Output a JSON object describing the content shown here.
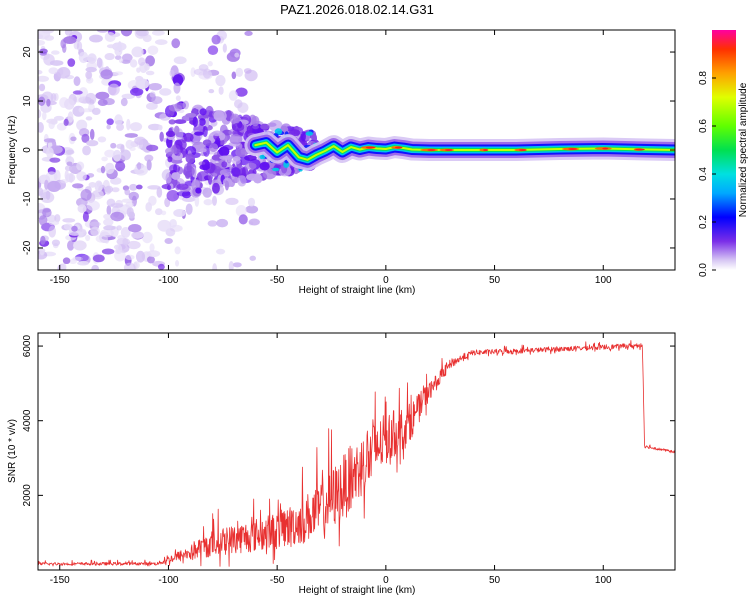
{
  "title": "PAZ1.2026.018.02.14.G31",
  "colors": {
    "line": "#e83030",
    "axis": "#000000",
    "background": "#ffffff"
  },
  "chart_data": [
    {
      "type": "heatmap",
      "title": "PAZ1.2026.018.02.14.G31",
      "xlabel": "Height of straight line (km)",
      "ylabel": "Frequency (Hz)",
      "xlim": [
        -160,
        133
      ],
      "ylim": [
        -24.5,
        24.5
      ],
      "xticks": [
        -150,
        -100,
        -50,
        0,
        50,
        100
      ],
      "xtick_labels": [
        "-150",
        "-100",
        "-50",
        "0",
        "50",
        "100"
      ],
      "yticks": [
        -20,
        -10,
        0,
        10,
        20
      ],
      "ytick_labels": [
        "-20",
        "-10",
        "0",
        "10",
        "20"
      ],
      "colorbar": {
        "label": "Normalized spectral amplitude",
        "range": [
          0,
          1
        ],
        "ticks": [
          0.0,
          0.2,
          0.4,
          0.6,
          0.8
        ],
        "tick_labels": [
          "0.0",
          "0.2",
          "0.4",
          "0.6",
          "0.8"
        ]
      },
      "ridge": [
        {
          "x": -60,
          "y": 1.0
        },
        {
          "x": -55,
          "y": 1.5
        },
        {
          "x": -50,
          "y": -0.5
        },
        {
          "x": -45,
          "y": 1.0
        },
        {
          "x": -40,
          "y": -1.5
        },
        {
          "x": -36,
          "y": -2.0
        },
        {
          "x": -32,
          "y": -1.0
        },
        {
          "x": -28,
          "y": -0.2
        },
        {
          "x": -24,
          "y": 0.8
        },
        {
          "x": -20,
          "y": -0.4
        },
        {
          "x": -16,
          "y": 0.6
        },
        {
          "x": -12,
          "y": 0.1
        },
        {
          "x": -8,
          "y": 0.5
        },
        {
          "x": -4,
          "y": 0.3
        },
        {
          "x": 0,
          "y": 0.2
        },
        {
          "x": 4,
          "y": 0.6
        },
        {
          "x": 8,
          "y": 0.4
        },
        {
          "x": 12,
          "y": 0.1
        },
        {
          "x": 20,
          "y": 0.0
        },
        {
          "x": 40,
          "y": 0.0
        },
        {
          "x": 60,
          "y": 0.0
        },
        {
          "x": 80,
          "y": 0.2
        },
        {
          "x": 100,
          "y": 0.3
        },
        {
          "x": 120,
          "y": 0.1
        },
        {
          "x": 133,
          "y": 0.0
        }
      ]
    },
    {
      "type": "line",
      "xlabel": "Height of straight line (km)",
      "ylabel": "SNR (10 * v/v)",
      "xlim": [
        -160,
        133
      ],
      "ylim": [
        0,
        6350
      ],
      "xticks": [
        -150,
        -100,
        -50,
        0,
        50,
        100
      ],
      "xtick_labels": [
        "-150",
        "-100",
        "-50",
        "0",
        "50",
        "100"
      ],
      "yticks": [
        2000,
        4000,
        6000
      ],
      "ytick_labels": [
        "2000",
        "4000",
        "6000"
      ],
      "series": [
        {
          "name": "SNR",
          "color": "#e83030",
          "envelope": [
            {
              "x": -160,
              "mean": 150,
              "noise": 80
            },
            {
              "x": -105,
              "mean": 160,
              "noise": 80
            },
            {
              "x": -100,
              "mean": 250,
              "noise": 200
            },
            {
              "x": -90,
              "mean": 400,
              "noise": 400
            },
            {
              "x": -80,
              "mean": 600,
              "noise": 700
            },
            {
              "x": -70,
              "mean": 700,
              "noise": 800
            },
            {
              "x": -60,
              "mean": 800,
              "noise": 900
            },
            {
              "x": -50,
              "mean": 900,
              "noise": 1000
            },
            {
              "x": -40,
              "mean": 1100,
              "noise": 1200
            },
            {
              "x": -30,
              "mean": 1400,
              "noise": 1500
            },
            {
              "x": -20,
              "mean": 1900,
              "noise": 1800
            },
            {
              "x": -10,
              "mean": 2600,
              "noise": 1700
            },
            {
              "x": 0,
              "mean": 3300,
              "noise": 1400
            },
            {
              "x": 10,
              "mean": 3700,
              "noise": 1100
            },
            {
              "x": 20,
              "mean": 4700,
              "noise": 500
            },
            {
              "x": 30,
              "mean": 5500,
              "noise": 250
            },
            {
              "x": 40,
              "mean": 5800,
              "noise": 150
            },
            {
              "x": 60,
              "mean": 5850,
              "noise": 130
            },
            {
              "x": 80,
              "mean": 5900,
              "noise": 130
            },
            {
              "x": 100,
              "mean": 5950,
              "noise": 130
            },
            {
              "x": 118,
              "mean": 6000,
              "noise": 130
            },
            {
              "x": 119,
              "mean": 3300,
              "noise": 80
            },
            {
              "x": 133,
              "mean": 3150,
              "noise": 60
            }
          ]
        }
      ]
    }
  ]
}
